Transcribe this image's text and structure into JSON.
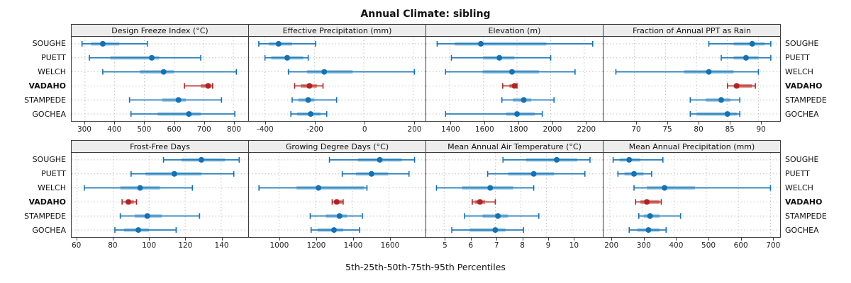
{
  "title": "Annual Climate: sibling",
  "caption": "5th-25th-50th-75th-95th Percentiles",
  "colors": {
    "series": "#1272b5",
    "series_band": "#a6cee3",
    "highlight": "#b22222",
    "highlight_band": "#dc9189",
    "gridline": "#bcbcbc",
    "panel_border": "#3c3c3c",
    "header_bg": "#ededed"
  },
  "chart_data": {
    "type": "scatter",
    "subtype": "percentile-range-dotplot",
    "title": "Annual Climate: sibling",
    "caption": "5th-25th-50th-75th-95th Percentiles",
    "percentiles": [
      5,
      25,
      50,
      75,
      95
    ],
    "categories": [
      "SOUGHE",
      "PUETT",
      "WELCH",
      "VADAHO",
      "STAMPEDE",
      "GOCHEA"
    ],
    "highlight_category": "VADAHO",
    "legend": "none",
    "grid": "dotted",
    "panels": [
      {
        "row": 0,
        "title": "Design Freeze Index (°C)",
        "ticks": [
          300,
          400,
          500,
          600,
          700,
          800
        ],
        "xlim": [
          255,
          850
        ],
        "values": {
          "SOUGHE": [
            290,
            320,
            360,
            415,
            510
          ],
          "PUETT": [
            315,
            385,
            525,
            550,
            690
          ],
          "WELCH": [
            360,
            485,
            565,
            600,
            810
          ],
          "VADAHO": [
            635,
            690,
            715,
            725,
            730
          ],
          "STAMPEDE": [
            450,
            560,
            615,
            640,
            760
          ],
          "GOCHEA": [
            455,
            545,
            650,
            690,
            805
          ]
        }
      },
      {
        "row": 0,
        "title": "Effective Precipitation (mm)",
        "ticks": [
          -400,
          -200,
          0,
          200
        ],
        "xlim": [
          -465,
          250
        ],
        "values": {
          "SOUGHE": [
            -425,
            -385,
            -345,
            -290,
            -195
          ],
          "PUETT": [
            -400,
            -375,
            -310,
            -245,
            -225
          ],
          "WELCH": [
            -305,
            -230,
            -160,
            -45,
            205
          ],
          "VADAHO": [
            -280,
            -255,
            -220,
            -190,
            -165
          ],
          "STAMPEDE": [
            -290,
            -265,
            -225,
            -200,
            -110
          ],
          "GOCHEA": [
            -295,
            -270,
            -215,
            -175,
            -150
          ]
        }
      },
      {
        "row": 0,
        "title": "Elevation (m)",
        "ticks": [
          1400,
          1600,
          1800,
          2000,
          2200
        ],
        "xlim": [
          1260,
          2310
        ],
        "values": {
          "SOUGHE": [
            1325,
            1430,
            1585,
            1975,
            2250
          ],
          "PUETT": [
            1410,
            1600,
            1695,
            1785,
            2000
          ],
          "WELCH": [
            1375,
            1595,
            1770,
            1930,
            2145
          ],
          "VADAHO": [
            1715,
            1755,
            1785,
            1795,
            1800
          ],
          "STAMPEDE": [
            1710,
            1775,
            1840,
            1885,
            2020
          ],
          "GOCHEA": [
            1375,
            1735,
            1800,
            1905,
            1950
          ]
        }
      },
      {
        "row": 0,
        "title": "Fraction of Annual PPT as Rain",
        "ticks": [
          70,
          75,
          80,
          85,
          90
        ],
        "xlim": [
          65,
          93.5
        ],
        "values": {
          "SOUGHE": [
            82,
            86,
            89,
            91,
            92
          ],
          "PUETT": [
            84,
            86,
            88,
            90,
            92
          ],
          "WELCH": [
            67,
            78,
            82,
            86,
            90
          ],
          "VADAHO": [
            85,
            86,
            86.5,
            89,
            89.5
          ],
          "STAMPEDE": [
            79,
            81.5,
            84,
            85.5,
            87
          ],
          "GOCHEA": [
            79,
            80,
            85,
            86.5,
            87
          ]
        }
      },
      {
        "row": 1,
        "title": "Frost-Free Days",
        "ticks": [
          60,
          80,
          100,
          120,
          140
        ],
        "xlim": [
          57,
          155
        ],
        "values": {
          "SOUGHE": [
            108,
            118,
            129,
            142,
            150
          ],
          "PUETT": [
            90,
            98,
            114,
            129,
            147
          ],
          "WELCH": [
            64,
            84,
            95,
            106,
            124
          ],
          "VADAHO": [
            85,
            87,
            88.5,
            91.5,
            93
          ],
          "STAMPEDE": [
            84,
            92,
            99,
            107,
            128
          ],
          "GOCHEA": [
            81,
            86,
            94,
            100,
            115
          ]
        }
      },
      {
        "row": 1,
        "title": "Growing Degree Days (°C)",
        "ticks": [
          1000,
          1200,
          1400,
          1600
        ],
        "xlim": [
          835,
          1800
        ],
        "values": {
          "SOUGHE": [
            1275,
            1430,
            1550,
            1670,
            1740
          ],
          "PUETT": [
            1345,
            1420,
            1505,
            1595,
            1710
          ],
          "WELCH": [
            890,
            1095,
            1215,
            1465,
            1480
          ],
          "VADAHO": [
            1290,
            1300,
            1315,
            1345,
            1350
          ],
          "STAMPEDE": [
            1170,
            1255,
            1330,
            1370,
            1455
          ],
          "GOCHEA": [
            1175,
            1210,
            1300,
            1350,
            1440
          ]
        }
      },
      {
        "row": 1,
        "title": "Mean Annual Air Temperature (°C)",
        "ticks": [
          5,
          6,
          7,
          8,
          9,
          10
        ],
        "xlim": [
          4.3,
          11.2
        ],
        "values": {
          "SOUGHE": [
            7.3,
            8.2,
            9.4,
            10.2,
            10.7
          ],
          "PUETT": [
            6.7,
            7.5,
            8.5,
            9.3,
            10.5
          ],
          "WELCH": [
            4.7,
            5.7,
            6.8,
            7.7,
            8.5
          ],
          "VADAHO": [
            6.1,
            6.2,
            6.4,
            6.6,
            7.0
          ],
          "STAMPEDE": [
            5.8,
            6.5,
            7.1,
            7.5,
            8.7
          ],
          "GOCHEA": [
            5.3,
            6.0,
            7.0,
            7.4,
            8.1
          ]
        }
      },
      {
        "row": 1,
        "title": "Mean Annual Precipitation (mm)",
        "ticks": [
          200,
          300,
          400,
          500,
          600,
          700
        ],
        "xlim": [
          180,
          730
        ],
        "values": {
          "SOUGHE": [
            210,
            230,
            260,
            295,
            365
          ],
          "PUETT": [
            225,
            245,
            275,
            305,
            330
          ],
          "WELCH": [
            275,
            315,
            370,
            465,
            700
          ],
          "VADAHO": [
            280,
            295,
            315,
            355,
            360
          ],
          "STAMPEDE": [
            290,
            305,
            325,
            355,
            420
          ],
          "GOCHEA": [
            260,
            285,
            320,
            355,
            375
          ]
        }
      }
    ]
  }
}
